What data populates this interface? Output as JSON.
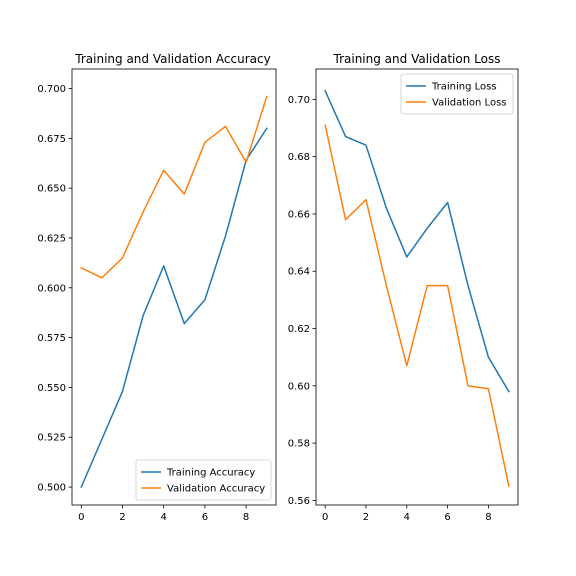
{
  "chart_data": [
    {
      "type": "line",
      "title": "Training and Validation Accuracy",
      "x": [
        0,
        1,
        2,
        3,
        4,
        5,
        6,
        7,
        8,
        9
      ],
      "xlim": [
        -0.45,
        9.45
      ],
      "ylim": [
        0.491,
        0.7098
      ],
      "xticks": [
        0,
        2,
        4,
        6,
        8
      ],
      "yticks": [
        0.5,
        0.525,
        0.55,
        0.575,
        0.6,
        0.625,
        0.65,
        0.675,
        0.7
      ],
      "xtick_labels": [
        "0",
        "2",
        "4",
        "6",
        "8"
      ],
      "ytick_labels": [
        "0.500",
        "0.525",
        "0.550",
        "0.575",
        "0.600",
        "0.625",
        "0.650",
        "0.675",
        "0.700"
      ],
      "grid": false,
      "legend_position": "lower-right",
      "series": [
        {
          "name": "Training Accuracy",
          "color": "#1f77b4",
          "values": [
            0.5,
            0.524,
            0.548,
            0.586,
            0.611,
            0.582,
            0.594,
            0.626,
            0.664,
            0.68
          ]
        },
        {
          "name": "Validation Accuracy",
          "color": "#ff7f0e",
          "values": [
            0.61,
            0.605,
            0.615,
            0.638,
            0.659,
            0.647,
            0.673,
            0.681,
            0.663,
            0.696
          ]
        }
      ]
    },
    {
      "type": "line",
      "title": "Training and Validation Loss",
      "x": [
        0,
        1,
        2,
        3,
        4,
        5,
        6,
        7,
        8,
        9
      ],
      "xlim": [
        -0.45,
        9.45
      ],
      "ylim": [
        0.5584,
        0.7106
      ],
      "xticks": [
        0,
        2,
        4,
        6,
        8
      ],
      "yticks": [
        0.56,
        0.58,
        0.6,
        0.62,
        0.64,
        0.66,
        0.68,
        0.7
      ],
      "xtick_labels": [
        "0",
        "2",
        "4",
        "6",
        "8"
      ],
      "ytick_labels": [
        "0.56",
        "0.58",
        "0.60",
        "0.62",
        "0.64",
        "0.66",
        "0.68",
        "0.70"
      ],
      "grid": false,
      "legend_position": "upper-right",
      "series": [
        {
          "name": "Training Loss",
          "color": "#1f77b4",
          "values": [
            0.703,
            0.687,
            0.684,
            0.662,
            0.645,
            0.655,
            0.664,
            0.635,
            0.61,
            0.598
          ]
        },
        {
          "name": "Validation Loss",
          "color": "#ff7f0e",
          "values": [
            0.691,
            0.658,
            0.665,
            0.635,
            0.607,
            0.635,
            0.635,
            0.6,
            0.599,
            0.565
          ]
        }
      ]
    }
  ]
}
